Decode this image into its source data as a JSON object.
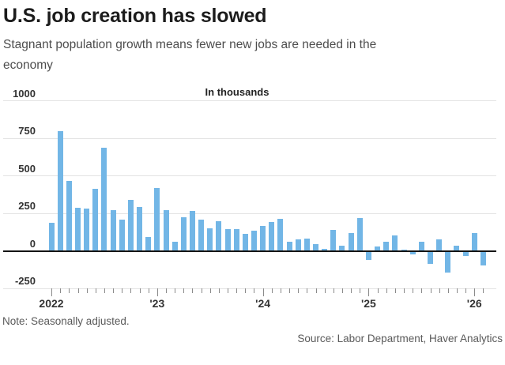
{
  "header": {
    "title": "U.S. job creation has slowed",
    "subtitle": "Stagnant population growth means fewer new jobs are needed in the\neconomy"
  },
  "chart_data": {
    "type": "bar",
    "title": "U.S. job creation has slowed",
    "unit_label": "In thousands",
    "ylim": [
      -250,
      1000
    ],
    "yticks": [
      1000,
      750,
      500,
      250,
      0,
      -250
    ],
    "ytick_labels": [
      "1000",
      "750",
      "500",
      "250",
      "0",
      "-250"
    ],
    "grid": "horizontal",
    "bar_color": "#72b6e6",
    "x": [
      "Jan 2022",
      "Feb 2022",
      "Mar 2022",
      "Apr 2022",
      "May 2022",
      "Jun 2022",
      "Jul 2022",
      "Aug 2022",
      "Sep 2022",
      "Oct 2022",
      "Nov 2022",
      "Dec 2022",
      "Jan 2023",
      "Feb 2023",
      "Mar 2023",
      "Apr 2023",
      "May 2023",
      "Jun 2023",
      "Jul 2023",
      "Aug 2023",
      "Sep 2023",
      "Oct 2023",
      "Nov 2023",
      "Dec 2023",
      "Jan 2024",
      "Feb 2024",
      "Mar 2024",
      "Apr 2024",
      "May 2024",
      "Jun 2024",
      "Jul 2024",
      "Aug 2024",
      "Sep 2024",
      "Oct 2024",
      "Nov 2024",
      "Dec 2024",
      "Jan 2025",
      "Feb 2025",
      "Mar 2025",
      "Apr 2025",
      "May 2025",
      "Jun 2025",
      "Jul 2025",
      "Aug 2025",
      "Sep 2025",
      "Oct 2025",
      "Nov 2025",
      "Dec 2025",
      "Jan 2026",
      "Feb 2026"
    ],
    "values": [
      185,
      800,
      465,
      285,
      280,
      415,
      690,
      270,
      210,
      340,
      290,
      95,
      420,
      270,
      60,
      225,
      265,
      210,
      150,
      200,
      145,
      145,
      115,
      135,
      165,
      190,
      215,
      60,
      75,
      80,
      45,
      15,
      140,
      35,
      120,
      220,
      -55,
      30,
      60,
      105,
      10,
      -20,
      60,
      -80,
      75,
      -140,
      35,
      -30,
      120,
      -90
    ],
    "year_tick_indices": [
      0,
      12,
      24,
      36,
      48
    ],
    "year_labels": [
      "2022",
      "'23",
      "'24",
      "'25",
      "'26"
    ]
  },
  "footer": {
    "note": "Note: Seasonally adjusted.",
    "source": "Source: Labor Department, Haver Analytics"
  }
}
